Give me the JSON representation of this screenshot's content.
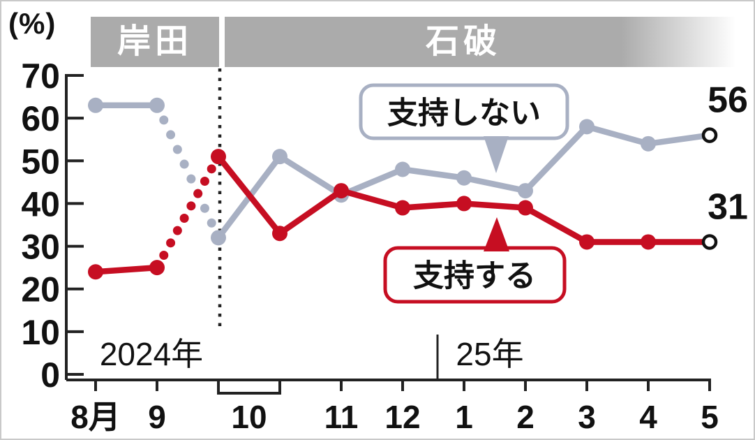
{
  "chart_data": {
    "type": "line",
    "unit_label": "(%)",
    "ylim": [
      0,
      70
    ],
    "yticks": [
      0,
      10,
      20,
      30,
      40,
      50,
      60,
      70
    ],
    "month_labels": [
      "8月",
      "9",
      "10",
      "11",
      "12",
      "1",
      "2",
      "3",
      "4",
      "5"
    ],
    "year_labels": [
      "2024年",
      "25年"
    ],
    "periods": [
      {
        "label": "岸田"
      },
      {
        "label": "石破"
      }
    ],
    "series": [
      {
        "name": "支持しない",
        "color": "#a8b0c3",
        "values": [
          63,
          63,
          32,
          51,
          42,
          48,
          46,
          43,
          58,
          54,
          56
        ],
        "dotted_transition_after_index": 1,
        "end_label": "56",
        "end_marker": "open-circle"
      },
      {
        "name": "支持する",
        "color": "#c60e22",
        "values": [
          24,
          25,
          51,
          33,
          43,
          39,
          40,
          39,
          31,
          31,
          31
        ],
        "dotted_transition_after_index": 1,
        "end_label": "31",
        "end_marker": "open-circle"
      }
    ],
    "callouts": [
      {
        "text": "支持しない",
        "series": 0
      },
      {
        "text": "支持する",
        "series": 1
      }
    ]
  }
}
